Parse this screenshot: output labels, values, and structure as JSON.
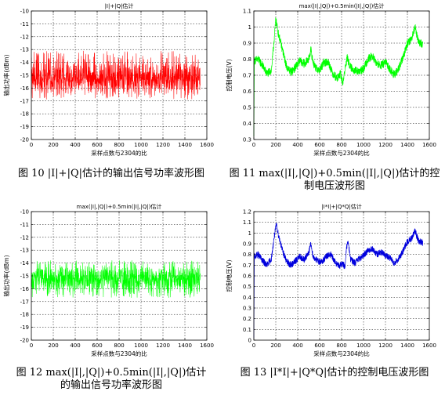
{
  "figures": [
    {
      "caption": "图 10 |I|+|Q|估计的输出信号功率波形图",
      "chart_data": {
        "type": "line",
        "title": "|I|+|Q|估计",
        "xlabel": "采样点数与2304的比",
        "ylabel": "输出功率(dBm)",
        "xlim": [
          0,
          1600
        ],
        "ylim": [
          -20,
          -10
        ],
        "xticks": [
          0,
          200,
          400,
          600,
          800,
          1000,
          1200,
          1400,
          1600
        ],
        "yticks": [
          -10,
          -11,
          -12,
          -13,
          -14,
          -15,
          -16,
          -17,
          -18,
          -19,
          -20
        ],
        "grid": true,
        "series": [
          {
            "color": "#ff0000",
            "x_range": [
              0,
              1540
            ],
            "noise_center": -15.3,
            "noise_band": [
              -16.9,
              -13.1
            ],
            "anchors": [
              [
                0,
                -15.3
              ],
              [
                400,
                -15.2
              ],
              [
                800,
                -15.3
              ],
              [
                1200,
                -15.4
              ],
              [
                1540,
                -15.3
              ]
            ]
          }
        ]
      }
    },
    {
      "caption": "图 11 max(|I|,|Q|)+0.5min(|I|,|Q|)估计的控制电压波形图",
      "chart_data": {
        "type": "line",
        "title": "max(|I|,|Q|)+0.5min(|I|,|Q|)估计",
        "xlabel": "采样点数与2304的比",
        "ylabel": "控制电压(V)",
        "xlim": [
          0,
          1600
        ],
        "ylim": [
          0.3,
          1.1
        ],
        "xticks": [
          0,
          200,
          400,
          600,
          800,
          1000,
          1200,
          1400,
          1600
        ],
        "yticks": [
          0.3,
          0.4,
          0.5,
          0.6,
          0.7,
          0.8,
          0.9,
          1.0,
          1.1
        ],
        "grid": true,
        "series": [
          {
            "color": "#00ff00",
            "x_range": [
              0,
              1540
            ],
            "jitter": 0.025,
            "anchors": [
              [
                0,
                0.32
              ],
              [
                5,
                0.79
              ],
              [
                40,
                0.8
              ],
              [
                80,
                0.76
              ],
              [
                120,
                0.71
              ],
              [
                160,
                0.73
              ],
              [
                185,
                0.92
              ],
              [
                200,
                1.05
              ],
              [
                220,
                0.97
              ],
              [
                260,
                0.86
              ],
              [
                300,
                0.75
              ],
              [
                340,
                0.72
              ],
              [
                380,
                0.75
              ],
              [
                420,
                0.79
              ],
              [
                460,
                0.77
              ],
              [
                500,
                0.8
              ],
              [
                520,
                0.86
              ],
              [
                540,
                0.78
              ],
              [
                570,
                0.74
              ],
              [
                600,
                0.73
              ],
              [
                640,
                0.78
              ],
              [
                680,
                0.78
              ],
              [
                720,
                0.71
              ],
              [
                760,
                0.68
              ],
              [
                790,
                0.71
              ],
              [
                810,
                0.65
              ],
              [
                830,
                0.73
              ],
              [
                850,
                0.81
              ],
              [
                880,
                0.75
              ],
              [
                920,
                0.73
              ],
              [
                960,
                0.72
              ],
              [
                1000,
                0.74
              ],
              [
                1040,
                0.8
              ],
              [
                1080,
                0.82
              ],
              [
                1120,
                0.77
              ],
              [
                1160,
                0.76
              ],
              [
                1200,
                0.78
              ],
              [
                1240,
                0.74
              ],
              [
                1280,
                0.7
              ],
              [
                1320,
                0.74
              ],
              [
                1360,
                0.81
              ],
              [
                1400,
                0.9
              ],
              [
                1440,
                0.93
              ],
              [
                1470,
                1.0
              ],
              [
                1500,
                0.91
              ],
              [
                1540,
                0.89
              ]
            ]
          }
        ]
      }
    },
    {
      "caption": "图 12 max(|I|,|Q|)+0.5min(|I|,|Q|)估计的输出信号功率波形图",
      "chart_data": {
        "type": "line",
        "title": "max(|I|,|Q|)+0.5min(|I|,|Q|)估计",
        "xlabel": "采样点数与2304的比",
        "ylabel": "输出功率(dBm)",
        "xlim": [
          0,
          1600
        ],
        "ylim": [
          -20,
          -10
        ],
        "xticks": [
          0,
          200,
          400,
          600,
          800,
          1000,
          1200,
          1400,
          1600
        ],
        "yticks": [
          -10,
          -11,
          -12,
          -13,
          -14,
          -15,
          -16,
          -17,
          -18,
          -19,
          -20
        ],
        "grid": true,
        "series": [
          {
            "color": "#00ff00",
            "x_range": [
              0,
              1540
            ],
            "noise_center": -15.2,
            "noise_band": [
              -16.7,
              -13.8
            ],
            "anchors": [
              [
                0,
                -15.2
              ],
              [
                400,
                -15.1
              ],
              [
                800,
                -15.2
              ],
              [
                1200,
                -15.2
              ],
              [
                1540,
                -15.2
              ]
            ]
          }
        ]
      }
    },
    {
      "caption": "图 13 |I*I|+|Q*Q|估计的控制电压波形图",
      "chart_data": {
        "type": "line",
        "title": "|I*I|+|Q*Q|估计",
        "xlabel": "采样点数与2304的比",
        "ylabel": "控制电压(V)",
        "xlim": [
          0,
          1600
        ],
        "ylim": [
          0,
          1.2
        ],
        "xticks": [
          0,
          200,
          400,
          600,
          800,
          1000,
          1200,
          1400,
          1600
        ],
        "yticks": [
          0,
          0.1,
          0.2,
          0.3,
          0.4,
          0.5,
          0.6,
          0.7,
          0.8,
          0.9,
          1.0,
          1.1,
          1.2
        ],
        "grid": true,
        "series": [
          {
            "color": "#0000dd",
            "x_range": [
              0,
              1540
            ],
            "jitter": 0.03,
            "anchors": [
              [
                0,
                0.02
              ],
              [
                5,
                0.78
              ],
              [
                40,
                0.8
              ],
              [
                80,
                0.74
              ],
              [
                120,
                0.7
              ],
              [
                160,
                0.76
              ],
              [
                185,
                0.96
              ],
              [
                205,
                1.08
              ],
              [
                225,
                0.98
              ],
              [
                260,
                0.84
              ],
              [
                300,
                0.73
              ],
              [
                340,
                0.7
              ],
              [
                380,
                0.74
              ],
              [
                420,
                0.78
              ],
              [
                460,
                0.75
              ],
              [
                500,
                0.82
              ],
              [
                520,
                0.9
              ],
              [
                540,
                0.78
              ],
              [
                580,
                0.74
              ],
              [
                620,
                0.73
              ],
              [
                660,
                0.78
              ],
              [
                700,
                0.8
              ],
              [
                740,
                0.73
              ],
              [
                780,
                0.69
              ],
              [
                810,
                0.72
              ],
              [
                830,
                0.68
              ],
              [
                845,
                0.86
              ],
              [
                860,
                0.92
              ],
              [
                880,
                0.76
              ],
              [
                920,
                0.72
              ],
              [
                960,
                0.76
              ],
              [
                1000,
                0.79
              ],
              [
                1040,
                0.84
              ],
              [
                1080,
                0.85
              ],
              [
                1120,
                0.8
              ],
              [
                1160,
                0.82
              ],
              [
                1200,
                0.79
              ],
              [
                1240,
                0.77
              ],
              [
                1280,
                0.72
              ],
              [
                1320,
                0.76
              ],
              [
                1360,
                0.83
              ],
              [
                1400,
                0.92
              ],
              [
                1440,
                0.95
              ],
              [
                1470,
                1.02
              ],
              [
                1500,
                0.93
              ],
              [
                1540,
                0.91
              ]
            ]
          }
        ]
      }
    }
  ]
}
